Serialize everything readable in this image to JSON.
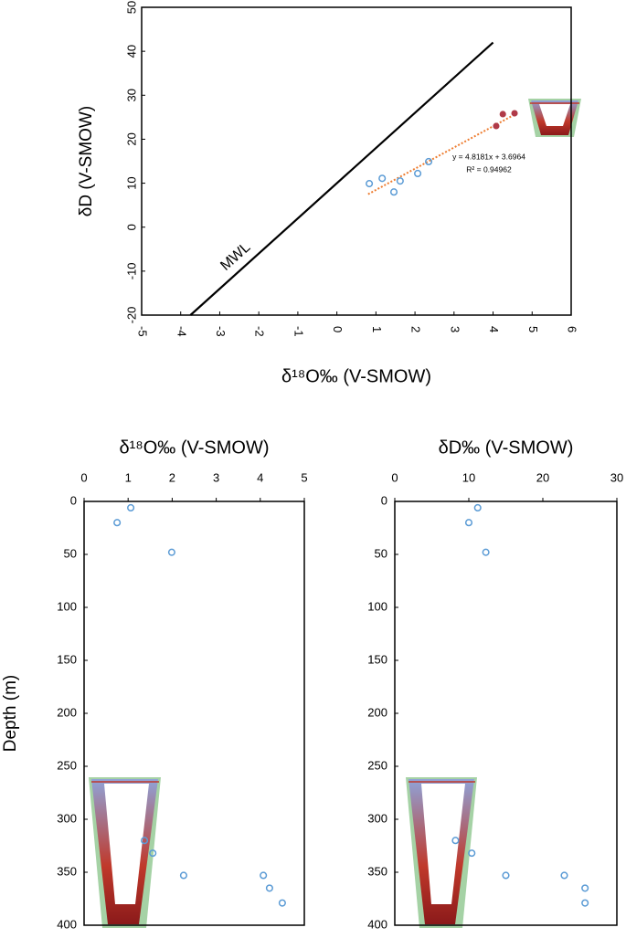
{
  "chart_data": [
    {
      "type": "scatter",
      "xlabel": "δ¹⁸O‰ (V-SMOW)",
      "ylabel": "δD  (V-SMOW)",
      "xlim": [
        -5,
        6
      ],
      "xticks": [
        -5,
        -4,
        -3,
        -2,
        -1,
        0,
        1,
        2,
        3,
        4,
        5,
        6
      ],
      "ylim": [
        -20,
        50
      ],
      "yticks": [
        -20,
        -10,
        0,
        10,
        20,
        30,
        40,
        50
      ],
      "series": [
        {
          "kind": "line",
          "label": "MWL",
          "color": "#000000",
          "x": [
            -3.75,
            4.0
          ],
          "values": [
            -20,
            42
          ]
        },
        {
          "kind": "line",
          "dash": true,
          "color": "#ed7d31",
          "x": [
            0.8,
            4.55
          ],
          "values": [
            7.5,
            25.6
          ]
        },
        {
          "kind": "points",
          "color": "#5b9bd5",
          "x": [
            0.83,
            1.16,
            1.46,
            1.62,
            2.07,
            2.35
          ],
          "values": [
            9.9,
            11.1,
            8.0,
            10.5,
            12.2,
            14.9
          ]
        },
        {
          "kind": "points",
          "filled": true,
          "color": "#b03a48",
          "x": [
            4.08,
            4.25,
            4.55
          ],
          "values": [
            23.0,
            25.7,
            25.9
          ]
        }
      ],
      "annotations": [
        "y = 4.8181x + 3.6964",
        "R² = 0.94962"
      ]
    },
    {
      "type": "scatter",
      "title": "δ¹⁸O‰ (V-SMOW)",
      "ylabel": "Depth (m)",
      "xlim": [
        0,
        5
      ],
      "xticks": [
        0,
        1,
        2,
        3,
        4,
        5
      ],
      "ylim": [
        0,
        400
      ],
      "y_inverted": true,
      "yticks": [
        0,
        50,
        100,
        150,
        200,
        250,
        300,
        350,
        400
      ],
      "series": [
        {
          "kind": "points",
          "color": "#5b9bd5",
          "x": [
            1.06,
            0.75,
            1.99,
            1.37,
            1.56,
            2.26,
            4.07,
            4.21,
            4.5
          ],
          "values": [
            6,
            20,
            48,
            320,
            332,
            353,
            353,
            365,
            379
          ]
        }
      ]
    },
    {
      "type": "scatter",
      "title": "δD‰ (V-SMOW)",
      "xlim": [
        0,
        30
      ],
      "xticks": [
        0,
        10,
        20,
        30
      ],
      "ylim": [
        0,
        400
      ],
      "y_inverted": true,
      "yticks": [
        0,
        50,
        100,
        150,
        200,
        250,
        300,
        350,
        400
      ],
      "series": [
        {
          "kind": "points",
          "color": "#5b9bd5",
          "x": [
            11.2,
            10.0,
            12.3,
            8.2,
            10.4,
            15.0,
            22.9,
            25.7,
            25.7
          ],
          "values": [
            6,
            20,
            48,
            320,
            332,
            353,
            353,
            365,
            379
          ]
        }
      ]
    }
  ]
}
